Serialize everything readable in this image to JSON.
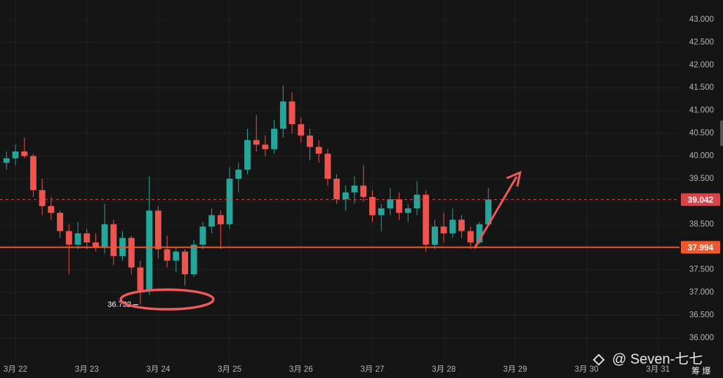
{
  "chart_data": {
    "type": "candlestick",
    "xlim": [
      21.784,
      31.302
    ],
    "xticks": [
      {
        "value": 22,
        "label": "3月 22"
      },
      {
        "value": 23,
        "label": "3月 23"
      },
      {
        "value": 24,
        "label": "3月 24"
      },
      {
        "value": 25,
        "label": "3月 25"
      },
      {
        "value": 26,
        "label": "3月 26"
      },
      {
        "value": 27,
        "label": "3月 27"
      },
      {
        "value": 28,
        "label": "3月 28"
      },
      {
        "value": 29,
        "label": "3月 29"
      },
      {
        "value": 30,
        "label": "3月 30"
      },
      {
        "value": 31,
        "label": "3月 31"
      }
    ],
    "ylim": [
      35.49,
      43.43
    ],
    "yticks": [
      {
        "value": 36,
        "label": "36.000"
      },
      {
        "value": 36.5,
        "label": "36.500"
      },
      {
        "value": 37,
        "label": "37.000"
      },
      {
        "value": 37.5,
        "label": "37.500"
      },
      {
        "value": 38,
        "label": "38.000"
      },
      {
        "value": 38.5,
        "label": "38.500"
      },
      {
        "value": 39,
        "label": "39.000"
      },
      {
        "value": 39.5,
        "label": "39.500"
      },
      {
        "value": 40,
        "label": "40.000"
      },
      {
        "value": 40.5,
        "label": "40.500"
      },
      {
        "value": 41,
        "label": "41.000"
      },
      {
        "value": 41.5,
        "label": "41.500"
      },
      {
        "value": 42,
        "label": "42.000"
      },
      {
        "value": 42.5,
        "label": "42.500"
      },
      {
        "value": 43,
        "label": "43.000"
      }
    ],
    "grid": true,
    "up_color": "#26a69a",
    "down_color": "#ef5350",
    "x": [
      21.875,
      22,
      22.125,
      22.25,
      22.375,
      22.5,
      22.625,
      22.75,
      22.875,
      23,
      23.125,
      23.25,
      23.375,
      23.5,
      23.625,
      23.75,
      23.875,
      24,
      24.125,
      24.25,
      24.375,
      24.5,
      24.625,
      24.75,
      24.875,
      25,
      25.125,
      25.25,
      25.375,
      25.5,
      25.625,
      25.75,
      25.875,
      26,
      26.125,
      26.25,
      26.375,
      26.5,
      26.625,
      26.75,
      26.875,
      27,
      27.125,
      27.25,
      27.375,
      27.5,
      27.625,
      27.75,
      27.875,
      28,
      28.125,
      28.25,
      28.375,
      28.5,
      28.625
    ],
    "open": [
      39.85,
      39.95,
      40.1,
      40.0,
      39.25,
      38.9,
      38.75,
      38.35,
      38.05,
      38.3,
      38.1,
      38.0,
      38.5,
      37.8,
      38.2,
      37.55,
      37.05,
      38.8,
      37.95,
      37.7,
      37.9,
      37.4,
      38.05,
      38.45,
      38.7,
      38.5,
      39.5,
      39.7,
      40.35,
      40.25,
      40.15,
      40.6,
      41.2,
      40.7,
      40.45,
      40.2,
      40.05,
      39.5,
      39.05,
      39.2,
      39.35,
      39.1,
      38.7,
      38.85,
      39.05,
      38.75,
      38.85,
      39.15,
      38.05,
      38.45,
      38.3,
      38.6,
      38.35,
      38.1,
      38.5
    ],
    "high": [
      40.1,
      40.25,
      40.4,
      40.05,
      39.5,
      39.1,
      38.8,
      38.5,
      38.55,
      38.4,
      38.3,
      38.95,
      38.6,
      38.35,
      38.25,
      37.7,
      39.55,
      38.9,
      38.25,
      38.0,
      37.95,
      38.15,
      38.55,
      38.85,
      38.8,
      39.75,
      39.85,
      40.6,
      40.9,
      40.45,
      40.8,
      41.55,
      41.4,
      40.85,
      40.6,
      40.35,
      40.15,
      39.6,
      39.35,
      39.55,
      39.8,
      39.25,
      38.95,
      39.3,
      39.2,
      38.95,
      39.45,
      39.25,
      38.6,
      38.75,
      38.85,
      38.7,
      38.45,
      38.55,
      39.3
    ],
    "low": [
      39.7,
      39.8,
      39.95,
      39.1,
      38.7,
      38.6,
      38.2,
      37.4,
      37.95,
      37.95,
      37.9,
      37.85,
      37.6,
      37.7,
      37.4,
      36.732,
      36.95,
      37.75,
      37.55,
      37.45,
      37.15,
      37.35,
      37.95,
      38.3,
      37.95,
      38.4,
      39.2,
      39.6,
      40.1,
      40.0,
      40.05,
      40.4,
      40.5,
      40.3,
      39.9,
      39.85,
      39.35,
      38.95,
      38.8,
      38.95,
      39.0,
      38.55,
      38.35,
      38.7,
      38.6,
      38.55,
      38.7,
      37.9,
      37.95,
      38.1,
      38.2,
      38.2,
      37.95,
      38.05,
      38.45
    ],
    "close": [
      39.95,
      40.1,
      40.0,
      39.25,
      38.9,
      38.75,
      38.35,
      38.05,
      38.3,
      38.1,
      38.0,
      38.5,
      37.8,
      38.2,
      37.55,
      37.05,
      38.8,
      37.95,
      37.7,
      37.9,
      37.4,
      38.05,
      38.45,
      38.7,
      38.5,
      39.5,
      39.7,
      40.35,
      40.25,
      40.15,
      40.6,
      41.2,
      40.7,
      40.45,
      40.2,
      40.05,
      39.5,
      39.05,
      39.2,
      39.35,
      39.1,
      38.7,
      38.85,
      39.05,
      38.75,
      38.85,
      39.15,
      38.05,
      38.45,
      38.3,
      38.6,
      38.35,
      38.1,
      38.5,
      39.042
    ],
    "price_lines": [
      {
        "value": 39.042,
        "color": "#d9434a",
        "style": "dashed"
      },
      {
        "value": 37.994,
        "color": "#f0582c",
        "style": "solid"
      }
    ],
    "low_annotation": {
      "x": 23.75,
      "value": 36.732
    },
    "watermark": "@ Seven-七七",
    "corner_text": "筹 爆"
  }
}
